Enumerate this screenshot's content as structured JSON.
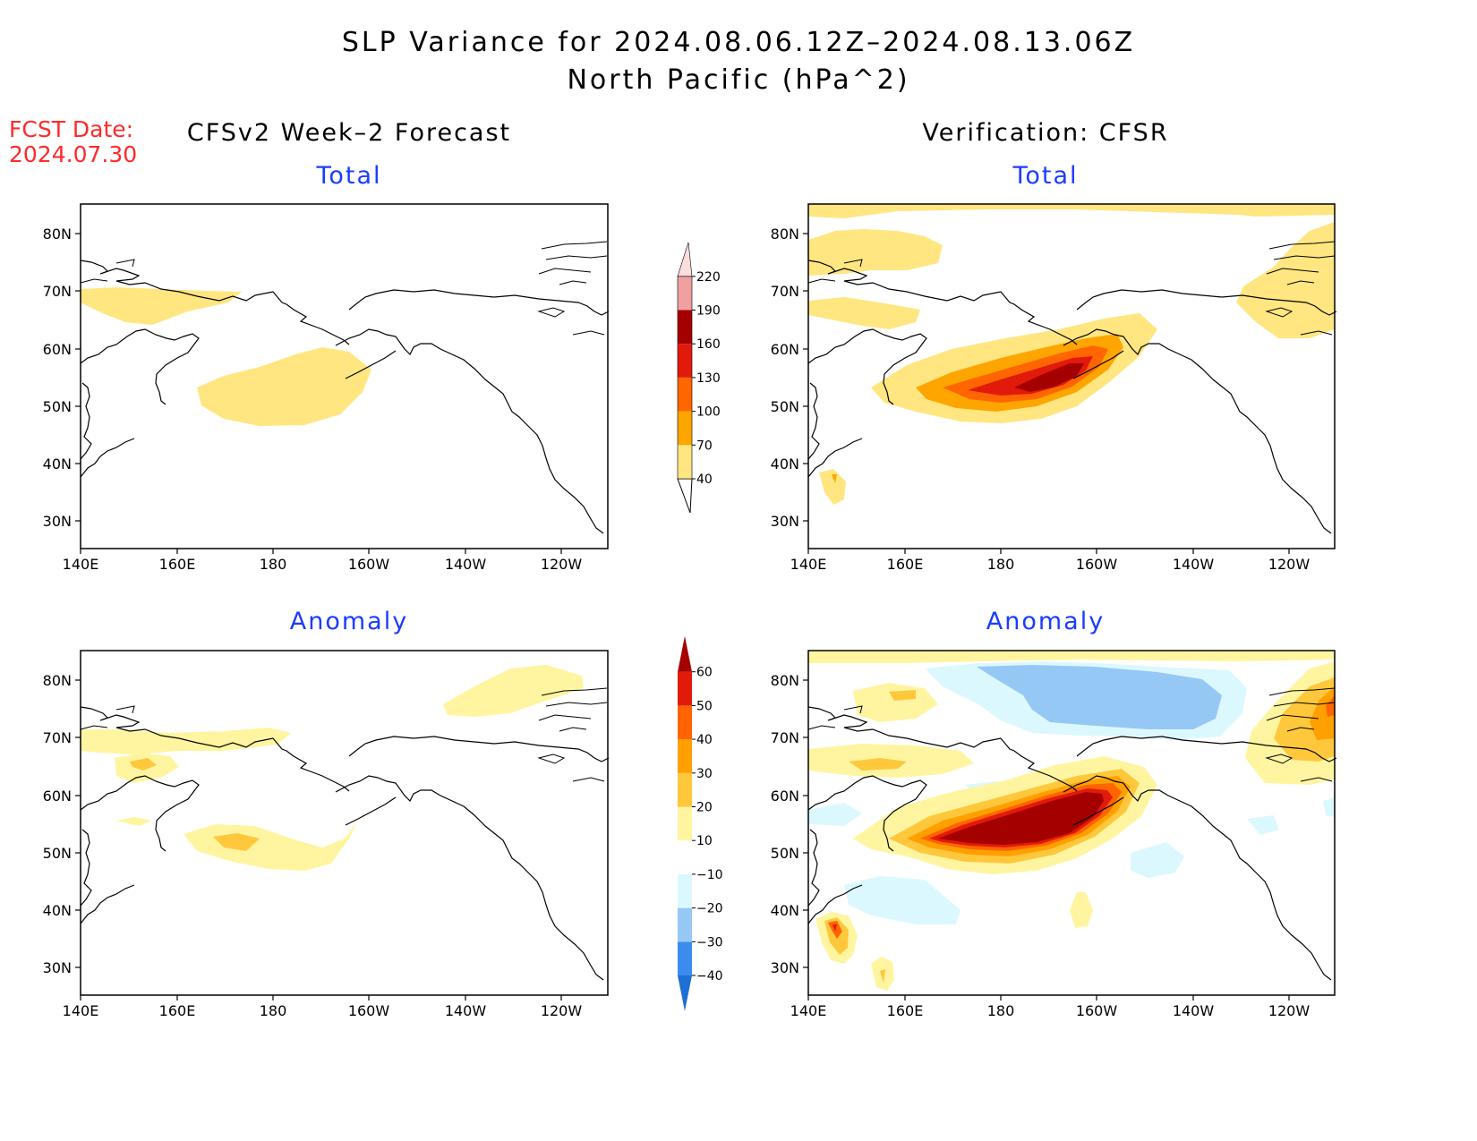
{
  "header": {
    "title_line1": "SLP Variance for 2024.08.06.12Z–2024.08.13.06Z",
    "title_line2": "North Pacific (hPa^2)",
    "fcst_label": "FCST Date:",
    "fcst_date": "2024.07.30"
  },
  "columns": {
    "left": "CFSv2 Week–2 Forecast",
    "right": "Verification: CFSR"
  },
  "panels": {
    "top_left": "Total",
    "top_right": "Total",
    "bottom_left": "Anomaly",
    "bottom_right": "Anomaly"
  },
  "axes": {
    "lat_labels": [
      "80N",
      "70N",
      "60N",
      "50N",
      "40N",
      "30N"
    ],
    "lon_labels": [
      "140E",
      "160E",
      "180",
      "160W",
      "140W",
      "120W"
    ]
  },
  "colorbars": {
    "total": {
      "levels": [
        "40",
        "70",
        "100",
        "130",
        "160",
        "190",
        "220"
      ],
      "colors": [
        "#ffe680",
        "#ffa500",
        "#ff6600",
        "#e11a0c",
        "#a50000",
        "#f0a0a0",
        "#fcdede"
      ]
    },
    "anomaly": {
      "levels": [
        "−40",
        "−30",
        "−20",
        "−10",
        "10",
        "20",
        "30",
        "40",
        "50",
        "60"
      ],
      "colors": [
        "#1e6fd6",
        "#3c8cf0",
        "#96c8f5",
        "#dcf8ff",
        "#ffffff",
        "#fff5a0",
        "#ffc83c",
        "#ffa000",
        "#ff6400",
        "#e11a0c",
        "#a50000"
      ]
    }
  }
}
